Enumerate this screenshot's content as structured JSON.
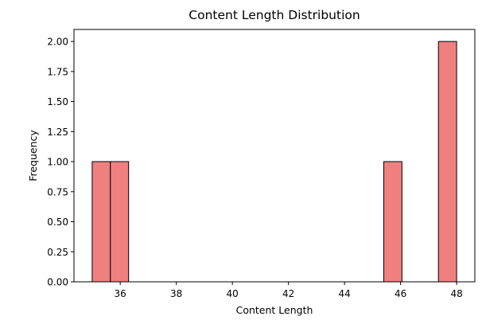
{
  "chart_data": {
    "type": "bar",
    "title": "Content Length Distribution",
    "xlabel": "Content Length",
    "ylabel": "Frequency",
    "bins": [
      {
        "x0": 35.0,
        "x1": 35.65,
        "count": 1
      },
      {
        "x0": 35.65,
        "x1": 36.3,
        "count": 1
      },
      {
        "x0": 45.4,
        "x1": 46.05,
        "count": 1
      },
      {
        "x0": 47.35,
        "x1": 48.0,
        "count": 2
      }
    ],
    "xlim": [
      34.35,
      48.65
    ],
    "ylim": [
      0,
      2.1
    ],
    "xticks": [
      36,
      38,
      40,
      42,
      44,
      46,
      48
    ],
    "xtick_labels": [
      "36",
      "38",
      "40",
      "42",
      "44",
      "46",
      "48"
    ],
    "yticks": [
      0,
      0.25,
      0.5,
      0.75,
      1.0,
      1.25,
      1.5,
      1.75,
      2.0
    ],
    "ytick_labels": [
      "0.00",
      "0.25",
      "0.50",
      "0.75",
      "1.00",
      "1.25",
      "1.50",
      "1.75",
      "2.00"
    ],
    "grid": false,
    "bar_color": "#f08080",
    "edge_color": "#000000"
  }
}
